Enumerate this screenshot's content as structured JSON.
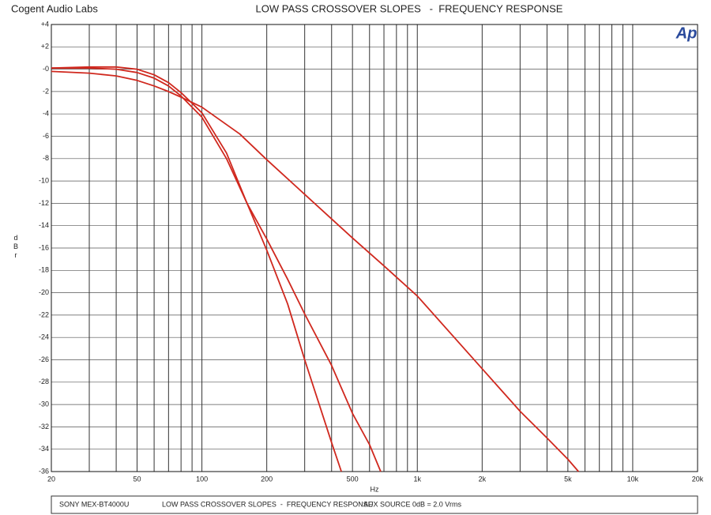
{
  "brand": "Cogent Audio Labs",
  "logo": "Ap",
  "footer": [
    "SONY MEX-BT4000U",
    "LOW PASS CROSSOVER SLOPES  -  FREQUENCY RESPONSE",
    "AUX SOURCE",
    "0dB = 2.0 Vrms"
  ],
  "chart_data": {
    "type": "line",
    "title": "LOW PASS CROSSOVER SLOPES   -  FREQUENCY RESPONSE",
    "xlabel": "Hz",
    "ylabel": "dBr",
    "xscale": "log",
    "grid": true,
    "xlim": [
      20,
      20000
    ],
    "ylim": [
      -36,
      4
    ],
    "xticks": [
      20,
      50,
      100,
      200,
      500,
      {
        "value": 1000,
        "label": "1k"
      },
      {
        "value": 2000,
        "label": "2k"
      },
      {
        "value": 5000,
        "label": "5k"
      },
      {
        "value": 10000,
        "label": "10k"
      },
      {
        "value": 20000,
        "label": "20k"
      }
    ],
    "x_minor_ticks": [
      30,
      40,
      60,
      70,
      80,
      90,
      300,
      400,
      600,
      700,
      800,
      900,
      3000,
      4000,
      6000,
      7000,
      8000,
      9000
    ],
    "yticks": [
      {
        "value": 4,
        "label": "+4"
      },
      {
        "value": 2,
        "label": "+2"
      },
      {
        "value": 0,
        "label": "-0"
      },
      -2,
      -4,
      -6,
      -8,
      -10,
      -12,
      -14,
      -16,
      -18,
      -20,
      -22,
      -24,
      -26,
      -28,
      -30,
      -32,
      -34,
      -36
    ],
    "series": [
      {
        "color": "#d0281e",
        "x": [
          20,
          30,
          40,
          50,
          60,
          70,
          80,
          100,
          150,
          200,
          300,
          500,
          700,
          1000,
          2000,
          3000,
          4000,
          5000,
          5600
        ],
        "values": [
          -0.2,
          -0.35,
          -0.6,
          -1.0,
          -1.5,
          -2.0,
          -2.5,
          -3.4,
          -5.8,
          -8.1,
          -11.2,
          -15.1,
          -17.6,
          -20.3,
          -26.8,
          -30.6,
          -33.0,
          -34.9,
          -36
        ]
      },
      {
        "color": "#d0281e",
        "x": [
          20,
          30,
          40,
          50,
          60,
          70,
          80,
          100,
          130,
          162,
          200,
          250,
          300,
          400,
          500,
          600,
          676
        ],
        "values": [
          0.1,
          0.1,
          0.0,
          -0.3,
          -0.8,
          -1.5,
          -2.4,
          -4.3,
          -8.0,
          -12.0,
          -15.2,
          -18.8,
          -21.9,
          -26.5,
          -30.8,
          -33.6,
          -36
        ]
      },
      {
        "color": "#d0281e",
        "x": [
          20,
          30,
          40,
          50,
          60,
          70,
          80,
          100,
          130,
          162,
          200,
          250,
          300,
          400,
          444
        ],
        "values": [
          0.1,
          0.2,
          0.2,
          0.0,
          -0.5,
          -1.2,
          -2.1,
          -3.9,
          -7.5,
          -12.0,
          -16.2,
          -21.0,
          -26.0,
          -33.4,
          -36
        ]
      }
    ]
  }
}
